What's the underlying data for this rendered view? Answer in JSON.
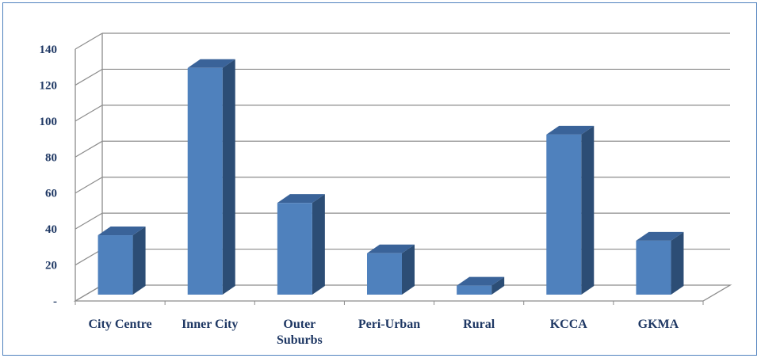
{
  "chart_data": {
    "type": "bar",
    "title": "",
    "xlabel": "",
    "ylabel": "",
    "categories": [
      "City Centre",
      "Inner City",
      "Outer Suburbs",
      "Peri-Urban",
      "Rural",
      "KCCA",
      "GKMA"
    ],
    "category_lines": [
      [
        "City Centre"
      ],
      [
        "Inner City"
      ],
      [
        "Outer",
        "Suburbs"
      ],
      [
        "Peri-Urban"
      ],
      [
        "Rural"
      ],
      [
        "KCCA"
      ],
      [
        "GKMA"
      ]
    ],
    "values": [
      33,
      126,
      51,
      23,
      5,
      89,
      30
    ],
    "ylim": [
      0,
      140
    ],
    "yticks": [
      0,
      20,
      40,
      60,
      80,
      100,
      120,
      140
    ],
    "ytick_labels": [
      "-",
      "20",
      "40",
      "60",
      "80",
      "100",
      "120",
      "140"
    ],
    "grid": true,
    "style": "3d-column",
    "colors": {
      "bar_front": "#4f81bd",
      "bar_side": "#2c4d75",
      "bar_top": "#3a6399",
      "grid": "#8c8c8c",
      "frame": "#4f81bd",
      "text": "#1f3864"
    }
  }
}
